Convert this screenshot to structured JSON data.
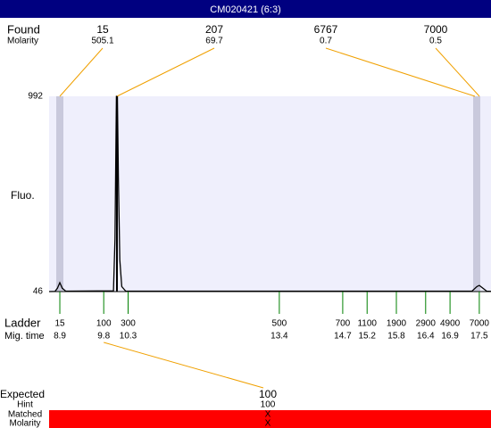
{
  "title": "CM020421 (6:3)",
  "found": {
    "label": "Found",
    "sublabel": "Molarity",
    "peaks": [
      {
        "size": 15,
        "molarity": 505.1
      },
      {
        "size": 207,
        "molarity": 69.7
      },
      {
        "size": 6767,
        "molarity": 0.7
      },
      {
        "size": 7000,
        "molarity": 0.5
      }
    ]
  },
  "fluo": {
    "label": "Fluo.",
    "yticks": [
      992,
      46
    ]
  },
  "trace": {
    "x": [
      8.68,
      8.8,
      8.85,
      8.9,
      8.95,
      9.02,
      10.0,
      10.03,
      10.06,
      10.08,
      10.1,
      10.13,
      10.17,
      10.25,
      17.35,
      17.45,
      17.5,
      17.56,
      17.65,
      17.74
    ],
    "y": [
      46,
      47,
      62,
      89,
      62,
      48,
      50,
      300,
      992,
      992,
      600,
      200,
      70,
      48,
      48,
      70,
      76,
      65,
      48,
      47
    ]
  },
  "ladder": {
    "label": "Ladder",
    "sublabel": "Mig. time",
    "xlim": [
      8.68,
      17.74
    ],
    "bands": [
      {
        "size": 15,
        "time": 8.9
      },
      {
        "size": 100,
        "time": 9.8
      },
      {
        "size": 300,
        "time": 10.3
      },
      {
        "size": 500,
        "time": 13.4
      },
      {
        "size": 700,
        "time": 14.7
      },
      {
        "size": 1100,
        "time": 15.2
      },
      {
        "size": 1900,
        "time": 15.8
      },
      {
        "size": 2900,
        "time": 16.4
      },
      {
        "size": 4900,
        "time": 16.9
      },
      {
        "size": 7000,
        "time": 17.5
      }
    ]
  },
  "expected": {
    "label": "Expected",
    "hint_label": "Hint",
    "matched_label": "Matched",
    "molarity_label": "Molarity",
    "value": 100,
    "hint": 100,
    "matched": "X",
    "molarity": "X"
  }
}
